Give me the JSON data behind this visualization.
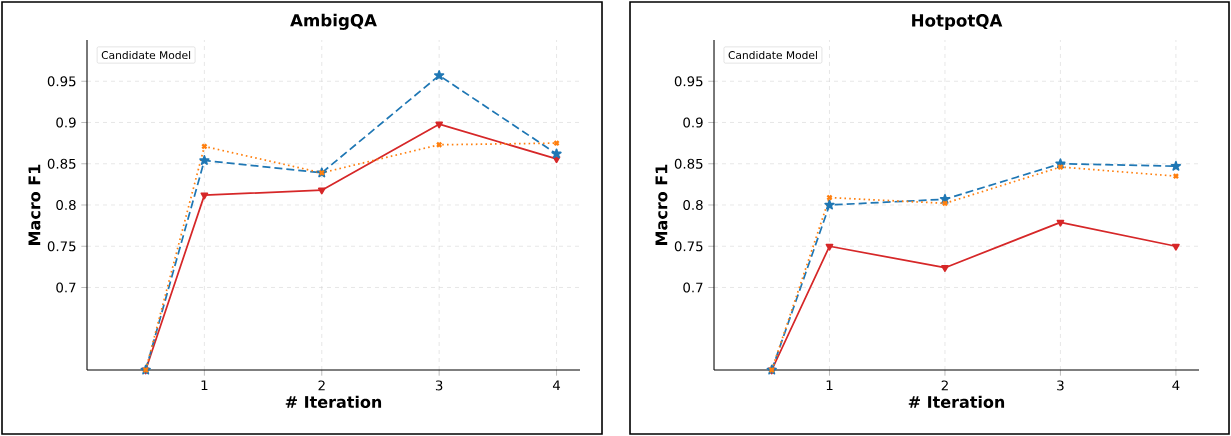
{
  "chart_data": [
    {
      "type": "line",
      "title": "AmbigQA",
      "xlabel": "# Iteration",
      "ylabel": "Macro F1",
      "annotations": [
        "Candidate Model"
      ],
      "grid": true,
      "x": [
        0.5,
        1,
        2,
        3,
        4
      ],
      "xlim": [
        0,
        4.2
      ],
      "xticks": [
        1,
        2,
        3,
        4
      ],
      "ylim": [
        0.6,
        1.0
      ],
      "yticks": [
        0.7,
        0.75,
        0.8,
        0.85,
        0.9,
        0.95
      ],
      "series": [
        {
          "color": "#d62728",
          "marker": "triangle",
          "line_style": "solid",
          "values": [
            0.6,
            0.812,
            0.818,
            0.898,
            0.856
          ]
        },
        {
          "color": "#1f77b4",
          "marker": "star",
          "line_style": "dashed",
          "values": [
            0.6,
            0.854,
            0.839,
            0.957,
            0.862
          ]
        },
        {
          "color": "#ff7f0e",
          "marker": "cross",
          "line_style": "dotted",
          "values": [
            0.6,
            0.871,
            0.839,
            0.873,
            0.875
          ]
        }
      ]
    },
    {
      "type": "line",
      "title": "HotpotQA",
      "xlabel": "# Iteration",
      "ylabel": "Macro F1",
      "annotations": [
        "Candidate Model"
      ],
      "grid": true,
      "x": [
        0.5,
        1,
        2,
        3,
        4
      ],
      "xlim": [
        0,
        4.2
      ],
      "xticks": [
        1,
        2,
        3,
        4
      ],
      "ylim": [
        0.6,
        1.0
      ],
      "yticks": [
        0.7,
        0.75,
        0.8,
        0.85,
        0.9,
        0.95
      ],
      "series": [
        {
          "color": "#d62728",
          "marker": "triangle",
          "line_style": "solid",
          "values": [
            0.6,
            0.75,
            0.724,
            0.779,
            0.75
          ]
        },
        {
          "color": "#1f77b4",
          "marker": "star",
          "line_style": "dashed",
          "values": [
            0.6,
            0.8,
            0.807,
            0.85,
            0.847
          ]
        },
        {
          "color": "#ff7f0e",
          "marker": "cross",
          "line_style": "dotted",
          "values": [
            0.6,
            0.809,
            0.802,
            0.846,
            0.835
          ]
        }
      ]
    }
  ]
}
